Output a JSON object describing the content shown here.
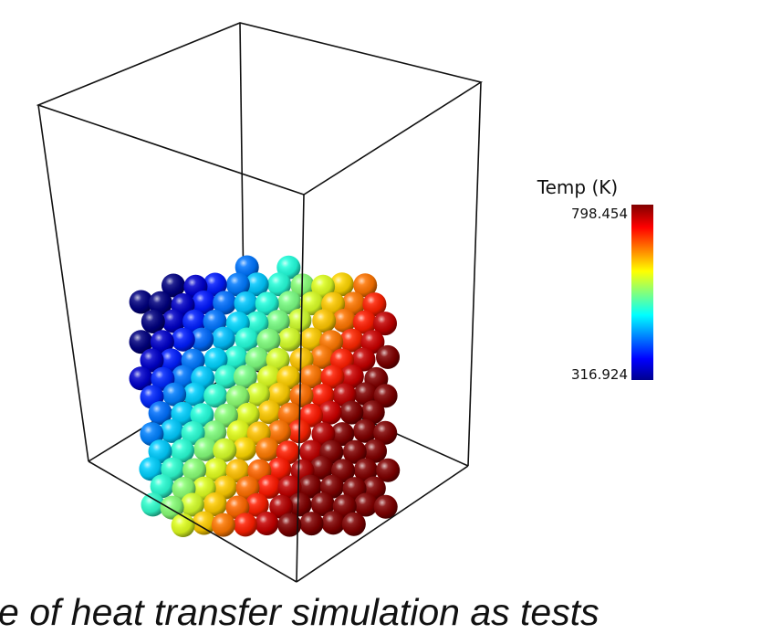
{
  "colorbar": {
    "title": "Temp (K)",
    "max": "798.454",
    "min": "316.924"
  },
  "caption": "e of heat transfer simulation as tests"
}
